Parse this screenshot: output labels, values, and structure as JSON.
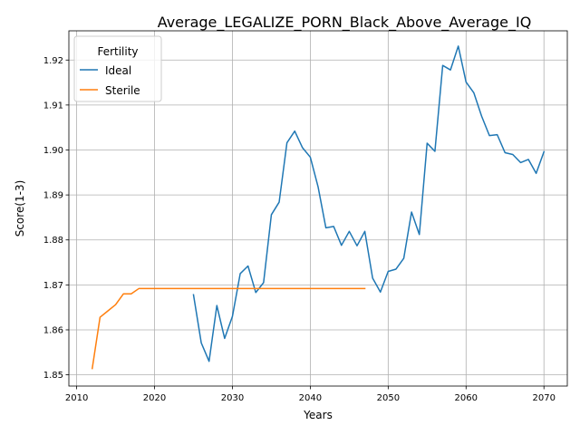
{
  "chart_data": {
    "type": "line",
    "title": "Average_LEGALIZE_PORN_Black_Above_Average_IQ",
    "xlabel": "Years",
    "ylabel": "Score(1-3)",
    "xlim": [
      2009,
      2073
    ],
    "ylim": [
      1.8475,
      1.9265
    ],
    "x_ticks": [
      2010,
      2020,
      2030,
      2040,
      2050,
      2060,
      2070
    ],
    "y_ticks": [
      1.85,
      1.86,
      1.87,
      1.88,
      1.89,
      1.9,
      1.91,
      1.92
    ],
    "y_tick_labels": [
      "1.85",
      "1.86",
      "1.87",
      "1.88",
      "1.89",
      "1.90",
      "1.91",
      "1.92"
    ],
    "grid": true,
    "legend": {
      "title": "Fertility",
      "placement": "top-left"
    },
    "series": [
      {
        "name": "Ideal",
        "color": "#1f77b4",
        "x": [
          2025,
          2026,
          2027,
          2028,
          2029,
          2030,
          2031,
          2032,
          2033,
          2034,
          2035,
          2036,
          2037,
          2038,
          2039,
          2040,
          2041,
          2042,
          2043,
          2044,
          2045,
          2046,
          2047,
          2048,
          2049,
          2050,
          2051,
          2052,
          2053,
          2054,
          2055,
          2056,
          2057,
          2058,
          2059,
          2060,
          2061,
          2062,
          2063,
          2064,
          2065,
          2066,
          2067,
          2068,
          2069,
          2070
        ],
        "y": [
          1.8678,
          1.8571,
          1.853,
          1.8654,
          1.8581,
          1.863,
          1.8725,
          1.8742,
          1.8683,
          1.8705,
          1.8856,
          1.8884,
          1.9016,
          1.9042,
          1.9005,
          1.8984,
          1.8918,
          1.8827,
          1.883,
          1.8788,
          1.8819,
          1.8787,
          1.8819,
          1.8715,
          1.8684,
          1.873,
          1.8735,
          1.8759,
          1.8862,
          1.8812,
          1.9015,
          1.8997,
          1.9188,
          1.9178,
          1.9231,
          1.9151,
          1.9127,
          1.9075,
          1.9032,
          1.9034,
          1.8994,
          1.899,
          1.8972,
          1.8979,
          1.8948,
          1.8996
        ]
      },
      {
        "name": "Sterile",
        "color": "#ff7f0e",
        "x": [
          2012,
          2013,
          2014,
          2015,
          2016,
          2017,
          2018,
          2019,
          2020,
          2021,
          2022,
          2023,
          2024,
          2025,
          2026,
          2027,
          2028,
          2029,
          2030,
          2031,
          2032,
          2033,
          2034,
          2035,
          2036,
          2037,
          2038,
          2039,
          2040,
          2041,
          2042,
          2043,
          2044,
          2045,
          2046,
          2047
        ],
        "y": [
          1.8514,
          1.8628,
          1.8642,
          1.8656,
          1.868,
          1.868,
          1.8692,
          1.8692,
          1.8692,
          1.8692,
          1.8692,
          1.8692,
          1.8692,
          1.8692,
          1.8692,
          1.8692,
          1.8692,
          1.8692,
          1.8692,
          1.8692,
          1.8692,
          1.8692,
          1.8692,
          1.8692,
          1.8692,
          1.8692,
          1.8692,
          1.8692,
          1.8692,
          1.8692,
          1.8692,
          1.8692,
          1.8692,
          1.8692,
          1.8692,
          1.8692
        ]
      }
    ]
  }
}
